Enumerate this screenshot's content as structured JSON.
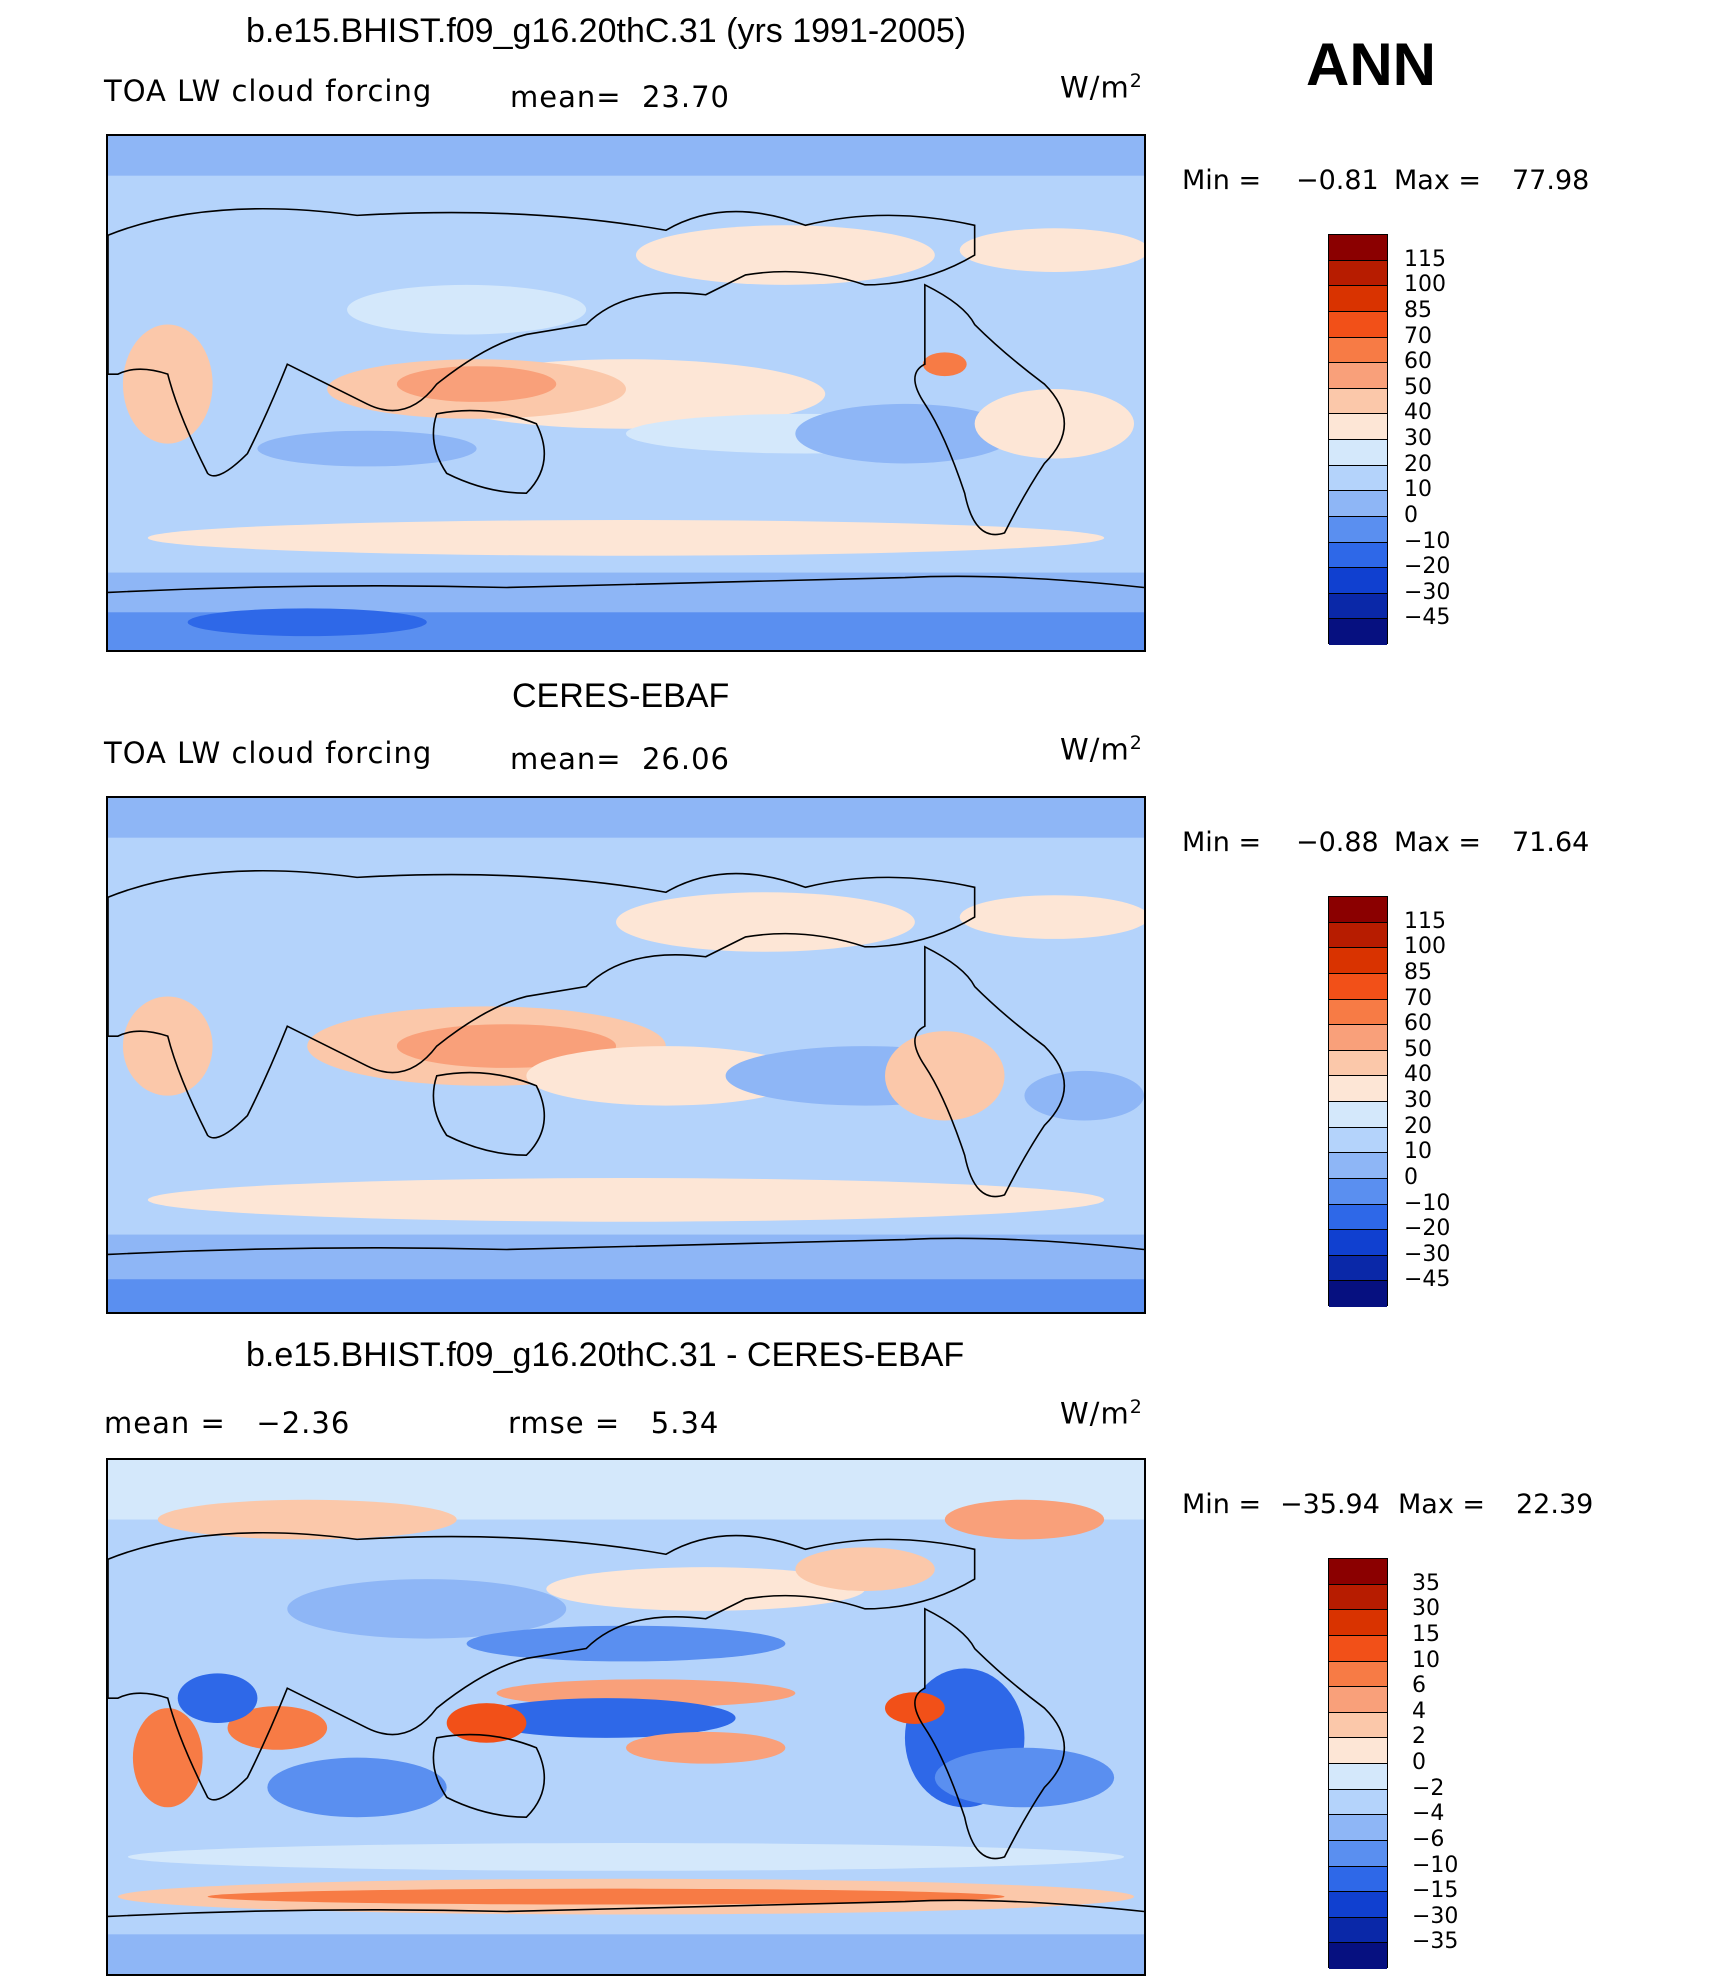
{
  "header": {
    "season": "ANN"
  },
  "panels": [
    {
      "title": "b.e15.BHIST.f09_g16.20thC.31 (yrs 1991-2005)",
      "left_label": "TOA LW cloud forcing",
      "mid_label": "mean=",
      "mid_value": "23.70",
      "units": "W/m",
      "units_sup": "2",
      "min_label": "Min =",
      "min_value": "−0.81",
      "max_label": "Max =",
      "max_value": "77.98"
    },
    {
      "title": "CERES-EBAF",
      "left_label": "TOA LW cloud forcing",
      "mid_label": "mean=",
      "mid_value": "26.06",
      "units": "W/m",
      "units_sup": "2",
      "min_label": "Min =",
      "min_value": "−0.88",
      "max_label": "Max =",
      "max_value": "71.64"
    },
    {
      "title": "b.e15.BHIST.f09_g16.20thC.31 - CERES-EBAF",
      "left_label": "mean =",
      "left_value": "−2.36",
      "mid_label": "rmse =",
      "mid_value": "5.34",
      "units": "W/m",
      "units_sup": "2",
      "min_label": "Min =",
      "min_value": "−35.94",
      "max_label": "Max =",
      "max_value": "22.39"
    }
  ],
  "colorbars": {
    "abs": {
      "ticks": [
        "115",
        "100",
        "85",
        "70",
        "60",
        "50",
        "40",
        "30",
        "20",
        "10",
        "0",
        "−10",
        "−20",
        "−30",
        "−45"
      ],
      "colors": [
        "#8b0000",
        "#b71c00",
        "#d93300",
        "#f25018",
        "#f77b45",
        "#f9a07a",
        "#fbc8aa",
        "#fde6d6",
        "#d4e8fb",
        "#b4d3fb",
        "#8eb6f6",
        "#5a8ff0",
        "#2e68e8",
        "#1040d0",
        "#0a28a8",
        "#061080"
      ]
    },
    "diff": {
      "ticks": [
        "35",
        "30",
        "15",
        "10",
        "6",
        "4",
        "2",
        "0",
        "−2",
        "−4",
        "−6",
        "−10",
        "−15",
        "−30",
        "−35"
      ],
      "colors": [
        "#8b0000",
        "#b71c00",
        "#d93300",
        "#f25018",
        "#f77b45",
        "#f9a07a",
        "#fbc8aa",
        "#fde6d6",
        "#d4e8fb",
        "#b4d3fb",
        "#8eb6f6",
        "#5a8ff0",
        "#2e68e8",
        "#1040d0",
        "#0a28a8",
        "#061080"
      ]
    }
  }
}
